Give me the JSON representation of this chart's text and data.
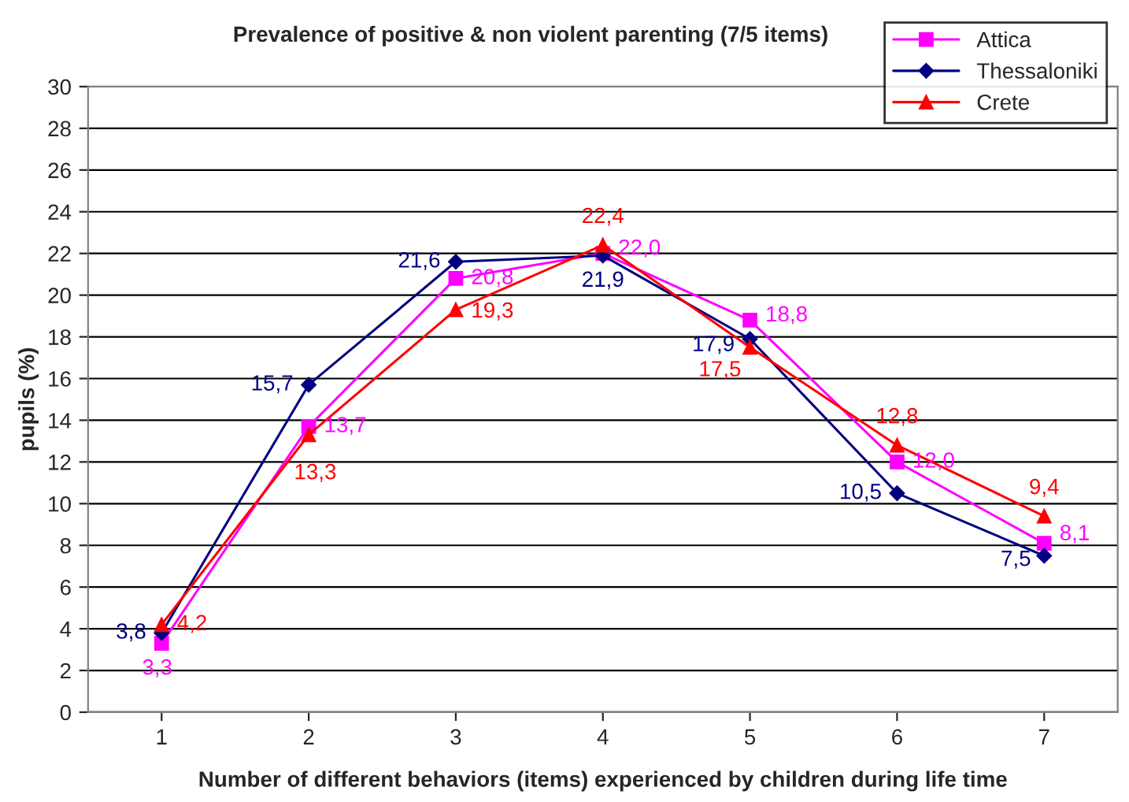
{
  "chart_data": {
    "type": "line",
    "title": "Prevalence of positive & non violent parenting (7/5 items)",
    "xlabel": "Number of different behaviors (items) experienced by children during life time",
    "ylabel": "pupils (%)",
    "categories": [
      "1",
      "2",
      "3",
      "4",
      "5",
      "6",
      "7"
    ],
    "series": [
      {
        "name": "Attica",
        "color": "#ff00ff",
        "marker": "square",
        "values": [
          3.3,
          13.7,
          20.8,
          22.0,
          18.8,
          12.0,
          8.1
        ],
        "value_labels": [
          "3,3",
          "13,7",
          "20,8",
          "22,0",
          "18,8",
          "12,0",
          "8,1"
        ]
      },
      {
        "name": "Thessaloniki",
        "color": "#000080",
        "marker": "diamond",
        "values": [
          3.8,
          15.7,
          21.6,
          21.9,
          17.9,
          10.5,
          7.5
        ],
        "value_labels": [
          "3,8",
          "15,7",
          "21,6",
          "21,9",
          "17,9",
          "10,5",
          "7,5"
        ]
      },
      {
        "name": "Crete",
        "color": "#ff0000",
        "marker": "triangle",
        "values": [
          4.2,
          13.3,
          19.3,
          22.4,
          17.5,
          12.8,
          9.4
        ],
        "value_labels": [
          "4,2",
          "13,3",
          "19,3",
          "22,4",
          "17,5",
          "12,8",
          "9,4"
        ]
      }
    ],
    "ylim": [
      0,
      30
    ],
    "yticks": [
      0,
      2,
      4,
      6,
      8,
      10,
      12,
      14,
      16,
      18,
      20,
      22,
      24,
      26,
      28,
      30
    ],
    "grid": "y",
    "legend": "top right"
  }
}
